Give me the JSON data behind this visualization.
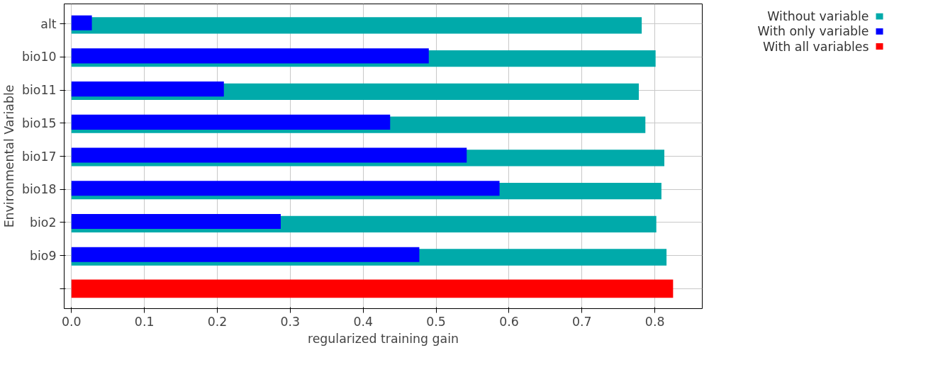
{
  "chart_data": {
    "type": "bar",
    "orientation": "horizontal",
    "xlabel": "regularized training gain",
    "ylabel": "Environmental Variable",
    "categories": [
      "alt",
      "bio10",
      "bio11",
      "bio15",
      "bio17",
      "bio18",
      "bio2",
      "bio9",
      null
    ],
    "series": [
      {
        "name": "Without variable",
        "color": "#00aaaa",
        "values": [
          0.782,
          0.801,
          0.778,
          0.787,
          0.813,
          0.809,
          0.802,
          0.816,
          null
        ]
      },
      {
        "name": "With only variable",
        "color": "#0000ff",
        "values": [
          0.028,
          0.49,
          0.209,
          0.437,
          0.542,
          0.587,
          0.287,
          0.477,
          null
        ]
      },
      {
        "name": "With all variables",
        "color": "#ff0000",
        "values": [
          null,
          null,
          null,
          null,
          null,
          null,
          null,
          null,
          0.825
        ]
      }
    ],
    "xlim": [
      -0.01,
      0.865
    ],
    "xticks": [
      {
        "value": 0,
        "label": "0.0"
      },
      0.1,
      0.2,
      0.3,
      0.4,
      0.5,
      0.6,
      0.7,
      0.8
    ],
    "grid": true,
    "legend": "top right"
  }
}
